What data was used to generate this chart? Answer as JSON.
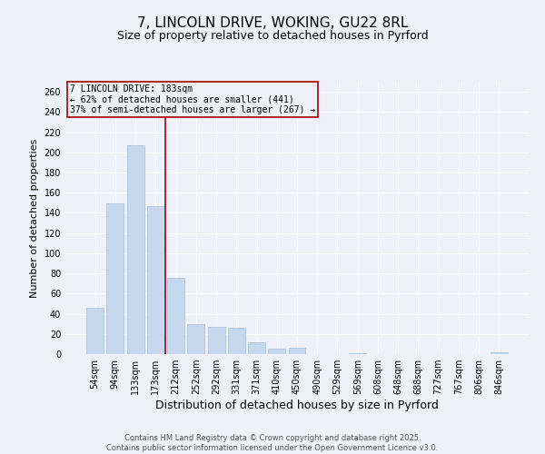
{
  "title": "7, LINCOLN DRIVE, WOKING, GU22 8RL",
  "subtitle": "Size of property relative to detached houses in Pyrford",
  "xlabel": "Distribution of detached houses by size in Pyrford",
  "ylabel": "Number of detached properties",
  "categories": [
    "54sqm",
    "94sqm",
    "133sqm",
    "173sqm",
    "212sqm",
    "252sqm",
    "292sqm",
    "331sqm",
    "371sqm",
    "410sqm",
    "450sqm",
    "490sqm",
    "529sqm",
    "569sqm",
    "608sqm",
    "648sqm",
    "688sqm",
    "727sqm",
    "767sqm",
    "806sqm",
    "846sqm"
  ],
  "values": [
    46,
    149,
    207,
    147,
    76,
    30,
    27,
    26,
    12,
    5,
    6,
    0,
    0,
    1,
    0,
    0,
    0,
    0,
    0,
    0,
    2
  ],
  "bar_color": "#c5d8ed",
  "bar_edge_color": "#a0bcd8",
  "ylim": [
    0,
    270
  ],
  "yticks": [
    0,
    20,
    40,
    60,
    80,
    100,
    120,
    140,
    160,
    180,
    200,
    220,
    240,
    260
  ],
  "vline_x": 3.5,
  "vline_color": "#aa0000",
  "annotation_text": "7 LINCOLN DRIVE: 183sqm\n← 62% of detached houses are smaller (441)\n37% of semi-detached houses are larger (267) →",
  "annotation_box_color": "#aa0000",
  "footer_line1": "Contains HM Land Registry data © Crown copyright and database right 2025.",
  "footer_line2": "Contains public sector information licensed under the Open Government Licence v3.0.",
  "bg_color": "#eef2f8",
  "grid_color": "#ffffff",
  "title_fontsize": 11,
  "subtitle_fontsize": 9,
  "axis_label_fontsize": 8,
  "tick_fontsize": 7,
  "footer_fontsize": 6
}
